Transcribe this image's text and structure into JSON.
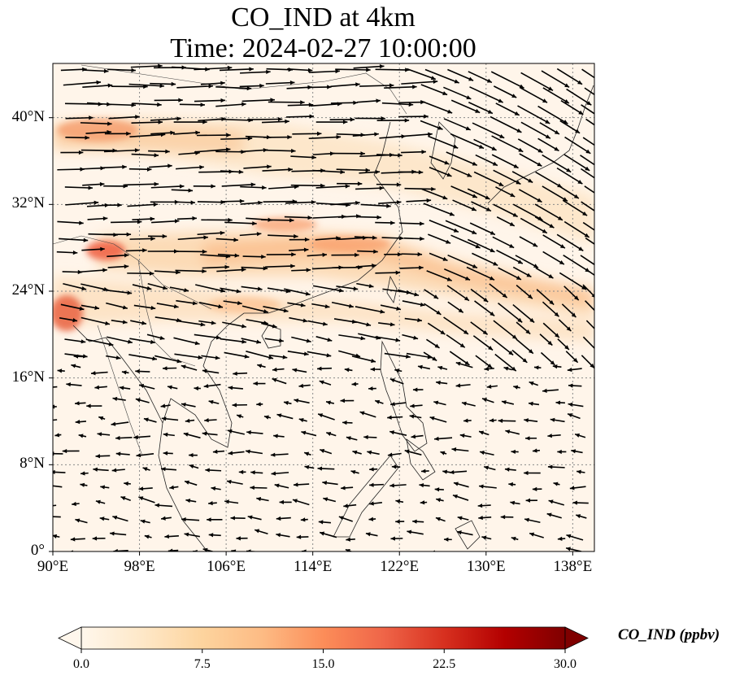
{
  "title_line1": "CO_IND at 4km",
  "title_line2": "Time: 2024-02-27 10:00:00",
  "map": {
    "lon_range": [
      90,
      140
    ],
    "lat_range": [
      0,
      45
    ],
    "lon_ticks": [
      {
        "value": 90,
        "label": "90°E"
      },
      {
        "value": 98,
        "label": "98°E"
      },
      {
        "value": 106,
        "label": "106°E"
      },
      {
        "value": 114,
        "label": "114°E"
      },
      {
        "value": 122,
        "label": "122°E"
      },
      {
        "value": 130,
        "label": "130°E"
      },
      {
        "value": 138,
        "label": "138°E"
      }
    ],
    "lat_ticks": [
      {
        "value": 0,
        "label": "0°"
      },
      {
        "value": 8,
        "label": "8°N"
      },
      {
        "value": 16,
        "label": "16°N"
      },
      {
        "value": 24,
        "label": "24°N"
      },
      {
        "value": 32,
        "label": "32°N"
      },
      {
        "value": 40,
        "label": "40°N"
      }
    ],
    "gridlines": true
  },
  "colorbar": {
    "label": "CO_IND (ppbv)",
    "colormap": "OrRd",
    "colors": [
      "#fff7ec",
      "#fee8c8",
      "#fdd49e",
      "#fdbb84",
      "#fc8d59",
      "#ef6548",
      "#d7301f",
      "#b30000",
      "#7f0000"
    ],
    "ticks": [
      {
        "value": 0.0,
        "label": "0.0"
      },
      {
        "value": 7.5,
        "label": "7.5"
      },
      {
        "value": 15.0,
        "label": "15.0"
      },
      {
        "value": 22.5,
        "label": "22.5"
      },
      {
        "value": 30.0,
        "label": "30.0"
      }
    ],
    "range": [
      0,
      30
    ],
    "extend": "both"
  }
}
